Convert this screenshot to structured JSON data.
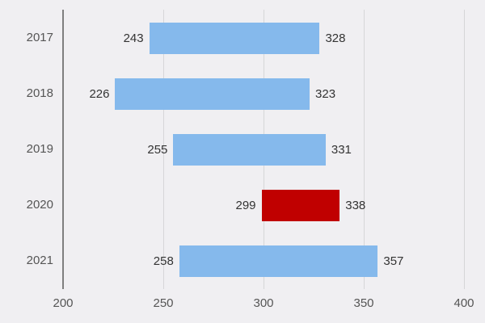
{
  "chart_data": {
    "type": "bar",
    "orientation": "horizontal",
    "subtype": "floating-range",
    "title": "",
    "xlabel": "",
    "ylabel": "",
    "categories": [
      "2017",
      "2018",
      "2019",
      "2020",
      "2021"
    ],
    "series": [
      {
        "name": "start",
        "values": [
          243,
          226,
          255,
          299,
          258
        ]
      },
      {
        "name": "end",
        "values": [
          328,
          323,
          331,
          338,
          357
        ]
      }
    ],
    "bar_colors": [
      "#85b9ec",
      "#85b9ec",
      "#85b9ec",
      "#c00000",
      "#85b9ec"
    ],
    "highlight_category": "2020",
    "xlim": [
      200,
      400
    ],
    "xticks": [
      "200",
      "250",
      "300",
      "350",
      "400"
    ],
    "grid": true,
    "legend": false
  }
}
